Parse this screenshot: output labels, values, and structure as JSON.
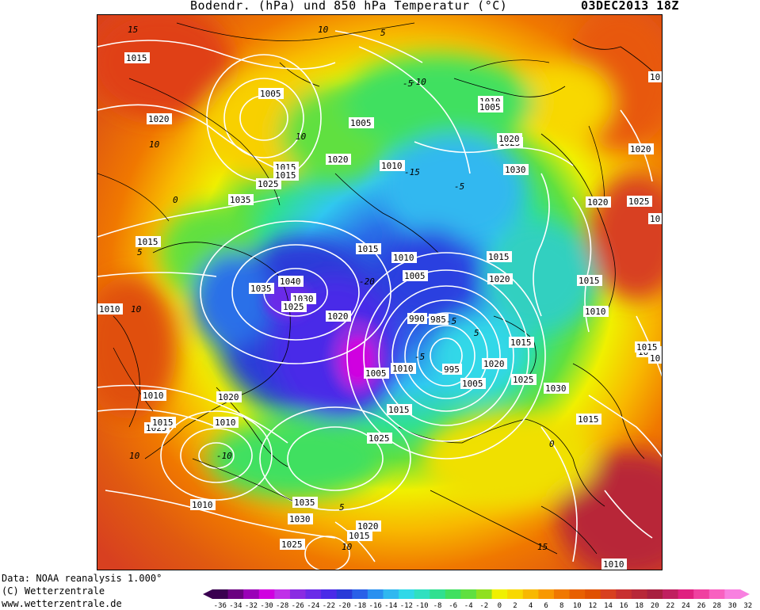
{
  "header": {
    "title": "Bodendr. (hPa) und 850 hPa Temperatur (°C)",
    "datestamp": "03DEC2013 18Z"
  },
  "footer": {
    "line1": "Data: NOAA reanalysis 1.000°",
    "line2": "(C) Wetterzentrale",
    "line3": "www.wetterzentrale.de"
  },
  "legend": {
    "ticks": [
      "-36",
      "-34",
      "-32",
      "-30",
      "-28",
      "-26",
      "-24",
      "-22",
      "-20",
      "-18",
      "-16",
      "-14",
      "-12",
      "-10",
      "-8",
      "-6",
      "-4",
      "-2",
      "0",
      "2",
      "4",
      "6",
      "8",
      "10",
      "12",
      "14",
      "16",
      "18",
      "20",
      "22",
      "24",
      "26",
      "28",
      "30",
      "32"
    ],
    "colors": [
      "#3a0050",
      "#6a0080",
      "#9a00b8",
      "#d000e0",
      "#c030e8",
      "#8a2be2",
      "#6a2be8",
      "#4a2ae8",
      "#2a3ad8",
      "#2a60e8",
      "#2a90f0",
      "#30b8f0",
      "#30d8e8",
      "#30e0c0",
      "#30e090",
      "#40e060",
      "#60e040",
      "#90e020",
      "#f0f000",
      "#f8d800",
      "#f8b800",
      "#f89800",
      "#f07800",
      "#e86000",
      "#e05000",
      "#d84020",
      "#c83030",
      "#b82838",
      "#a82040",
      "#c02060",
      "#e02080",
      "#f040a0",
      "#f860c0",
      "#f880e0"
    ]
  },
  "isobar_labels": [
    {
      "t": "1015"
    },
    {
      "t": "1005"
    },
    {
      "t": "1020"
    },
    {
      "t": "1015"
    },
    {
      "t": "1015"
    },
    {
      "t": "1025"
    },
    {
      "t": "1035"
    },
    {
      "t": "1015"
    },
    {
      "t": "1005"
    },
    {
      "t": "1020"
    },
    {
      "t": "1010"
    },
    {
      "t": "1015"
    },
    {
      "t": "1010"
    },
    {
      "t": "1005"
    },
    {
      "t": "1035"
    },
    {
      "t": "1040"
    },
    {
      "t": "1030"
    },
    {
      "t": "1025"
    },
    {
      "t": "1020"
    },
    {
      "t": "990"
    },
    {
      "t": "985"
    },
    {
      "t": "1010"
    },
    {
      "t": "1005"
    },
    {
      "t": "1015"
    },
    {
      "t": "1010"
    },
    {
      "t": "1005"
    },
    {
      "t": "1015"
    },
    {
      "t": "1020"
    },
    {
      "t": "1020"
    },
    {
      "t": "1015"
    },
    {
      "t": "1025"
    },
    {
      "t": "995"
    },
    {
      "t": "1005"
    },
    {
      "t": "1015"
    },
    {
      "t": "1020"
    },
    {
      "t": "1025"
    },
    {
      "t": "1030"
    },
    {
      "t": "1035"
    },
    {
      "t": "1030"
    },
    {
      "t": "1020"
    },
    {
      "t": "1015"
    },
    {
      "t": "1025"
    },
    {
      "t": "1010"
    },
    {
      "t": "1025"
    },
    {
      "t": "1015"
    },
    {
      "t": "1010"
    },
    {
      "t": "1020"
    },
    {
      "t": "1025"
    },
    {
      "t": "1030"
    },
    {
      "t": "1020"
    },
    {
      "t": "1010"
    },
    {
      "t": "1020"
    },
    {
      "t": "1025"
    },
    {
      "t": "1010"
    },
    {
      "t": "1015"
    },
    {
      "t": "10"
    },
    {
      "t": "10"
    },
    {
      "t": "1015"
    },
    {
      "t": "1015"
    },
    {
      "t": "10"
    },
    {
      "t": "1010"
    },
    {
      "t": "1010"
    }
  ],
  "temp_labels": [
    "15",
    "10",
    "10",
    "5",
    "-5",
    "-10",
    "10",
    "0",
    "-15",
    "-5",
    "5",
    "10",
    "-10",
    "10",
    "-20",
    "-5",
    "5",
    "5",
    "10",
    "0",
    "-5",
    "15"
  ]
}
